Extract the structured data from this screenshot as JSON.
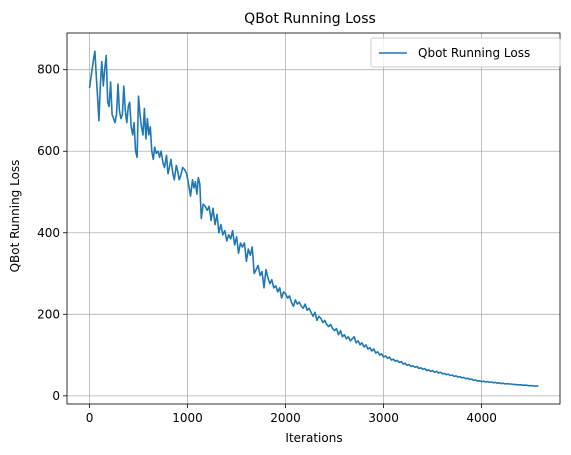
{
  "chart_data": {
    "type": "line",
    "title": "QBot Running Loss",
    "xlabel": "Iterations",
    "ylabel": "QBot Running Loss",
    "xlim": [
      -230,
      4800
    ],
    "ylim": [
      -20,
      890
    ],
    "xticks": [
      0,
      1000,
      2000,
      3000,
      4000
    ],
    "yticks": [
      0,
      200,
      400,
      600,
      800
    ],
    "xtick_labels": [
      "0",
      "1000",
      "2000",
      "3000",
      "4000"
    ],
    "ytick_labels": [
      "0",
      "200",
      "400",
      "600",
      "800"
    ],
    "grid": true,
    "legend_position": "top-right",
    "series": [
      {
        "name": "Qbot Running Loss",
        "color": "#1f77b4",
        "points": [
          [
            0,
            755
          ],
          [
            20,
            790
          ],
          [
            40,
            825
          ],
          [
            55,
            845
          ],
          [
            70,
            780
          ],
          [
            85,
            720
          ],
          [
            95,
            675
          ],
          [
            110,
            760
          ],
          [
            125,
            820
          ],
          [
            140,
            760
          ],
          [
            155,
            800
          ],
          [
            170,
            835
          ],
          [
            185,
            720
          ],
          [
            200,
            710
          ],
          [
            215,
            770
          ],
          [
            230,
            690
          ],
          [
            245,
            680
          ],
          [
            260,
            670
          ],
          [
            275,
            690
          ],
          [
            290,
            765
          ],
          [
            305,
            700
          ],
          [
            320,
            680
          ],
          [
            335,
            690
          ],
          [
            350,
            760
          ],
          [
            365,
            700
          ],
          [
            380,
            670
          ],
          [
            395,
            710
          ],
          [
            410,
            720
          ],
          [
            425,
            660
          ],
          [
            440,
            640
          ],
          [
            455,
            670
          ],
          [
            470,
            600
          ],
          [
            485,
            585
          ],
          [
            500,
            735
          ],
          [
            515,
            690
          ],
          [
            530,
            660
          ],
          [
            545,
            640
          ],
          [
            560,
            705
          ],
          [
            575,
            630
          ],
          [
            590,
            680
          ],
          [
            605,
            640
          ],
          [
            620,
            660
          ],
          [
            635,
            600
          ],
          [
            650,
            580
          ],
          [
            665,
            610
          ],
          [
            680,
            595
          ],
          [
            700,
            600
          ],
          [
            715,
            585
          ],
          [
            730,
            600
          ],
          [
            750,
            570
          ],
          [
            765,
            560
          ],
          [
            785,
            590
          ],
          [
            800,
            545
          ],
          [
            815,
            560
          ],
          [
            830,
            580
          ],
          [
            850,
            545
          ],
          [
            865,
            530
          ],
          [
            885,
            565
          ],
          [
            900,
            550
          ],
          [
            915,
            530
          ],
          [
            930,
            540
          ],
          [
            950,
            560
          ],
          [
            970,
            555
          ],
          [
            990,
            545
          ],
          [
            1010,
            520
          ],
          [
            1030,
            490
          ],
          [
            1050,
            530
          ],
          [
            1065,
            510
          ],
          [
            1080,
            525
          ],
          [
            1095,
            495
          ],
          [
            1110,
            535
          ],
          [
            1125,
            520
          ],
          [
            1140,
            435
          ],
          [
            1160,
            470
          ],
          [
            1180,
            465
          ],
          [
            1200,
            455
          ],
          [
            1220,
            465
          ],
          [
            1240,
            430
          ],
          [
            1260,
            460
          ],
          [
            1280,
            420
          ],
          [
            1300,
            445
          ],
          [
            1320,
            400
          ],
          [
            1340,
            420
          ],
          [
            1360,
            395
          ],
          [
            1380,
            405
          ],
          [
            1400,
            380
          ],
          [
            1420,
            395
          ],
          [
            1440,
            385
          ],
          [
            1460,
            405
          ],
          [
            1480,
            370
          ],
          [
            1500,
            390
          ],
          [
            1520,
            350
          ],
          [
            1540,
            375
          ],
          [
            1560,
            365
          ],
          [
            1580,
            375
          ],
          [
            1600,
            330
          ],
          [
            1620,
            360
          ],
          [
            1640,
            345
          ],
          [
            1660,
            365
          ],
          [
            1680,
            300
          ],
          [
            1700,
            310
          ],
          [
            1720,
            320
          ],
          [
            1740,
            295
          ],
          [
            1760,
            305
          ],
          [
            1780,
            265
          ],
          [
            1800,
            310
          ],
          [
            1820,
            290
          ],
          [
            1840,
            275
          ],
          [
            1860,
            285
          ],
          [
            1880,
            265
          ],
          [
            1900,
            270
          ],
          [
            1920,
            255
          ],
          [
            1940,
            265
          ],
          [
            1960,
            240
          ],
          [
            1980,
            255
          ],
          [
            2000,
            250
          ],
          [
            2020,
            240
          ],
          [
            2040,
            245
          ],
          [
            2060,
            230
          ],
          [
            2080,
            220
          ],
          [
            2100,
            235
          ],
          [
            2120,
            225
          ],
          [
            2140,
            230
          ],
          [
            2160,
            220
          ],
          [
            2180,
            215
          ],
          [
            2200,
            225
          ],
          [
            2220,
            210
          ],
          [
            2240,
            215
          ],
          [
            2260,
            205
          ],
          [
            2280,
            195
          ],
          [
            2300,
            205
          ],
          [
            2320,
            185
          ],
          [
            2340,
            195
          ],
          [
            2360,
            190
          ],
          [
            2380,
            180
          ],
          [
            2400,
            185
          ],
          [
            2420,
            175
          ],
          [
            2440,
            170
          ],
          [
            2460,
            175
          ],
          [
            2480,
            165
          ],
          [
            2500,
            160
          ],
          [
            2520,
            165
          ],
          [
            2540,
            150
          ],
          [
            2560,
            160
          ],
          [
            2580,
            145
          ],
          [
            2600,
            150
          ],
          [
            2620,
            140
          ],
          [
            2640,
            145
          ],
          [
            2660,
            135
          ],
          [
            2680,
            140
          ],
          [
            2700,
            145
          ],
          [
            2720,
            130
          ],
          [
            2740,
            135
          ],
          [
            2760,
            125
          ],
          [
            2780,
            130
          ],
          [
            2800,
            120
          ],
          [
            2820,
            125
          ],
          [
            2840,
            115
          ],
          [
            2860,
            118
          ],
          [
            2880,
            110
          ],
          [
            2900,
            115
          ],
          [
            2920,
            105
          ],
          [
            2940,
            108
          ],
          [
            2960,
            100
          ],
          [
            2980,
            103
          ],
          [
            3000,
            95
          ],
          [
            3020,
            98
          ],
          [
            3040,
            92
          ],
          [
            3060,
            95
          ],
          [
            3080,
            88
          ],
          [
            3100,
            90
          ],
          [
            3120,
            85
          ],
          [
            3140,
            87
          ],
          [
            3160,
            82
          ],
          [
            3180,
            84
          ],
          [
            3200,
            78
          ],
          [
            3220,
            80
          ],
          [
            3240,
            75
          ],
          [
            3260,
            77
          ],
          [
            3280,
            72
          ],
          [
            3300,
            74
          ],
          [
            3320,
            70
          ],
          [
            3340,
            72
          ],
          [
            3360,
            67
          ],
          [
            3380,
            69
          ],
          [
            3400,
            65
          ],
          [
            3420,
            67
          ],
          [
            3440,
            62
          ],
          [
            3460,
            64
          ],
          [
            3480,
            60
          ],
          [
            3500,
            62
          ],
          [
            3520,
            58
          ],
          [
            3540,
            60
          ],
          [
            3560,
            56
          ],
          [
            3580,
            58
          ],
          [
            3600,
            54
          ],
          [
            3620,
            55
          ],
          [
            3640,
            52
          ],
          [
            3660,
            53
          ],
          [
            3680,
            50
          ],
          [
            3700,
            51
          ],
          [
            3720,
            48
          ],
          [
            3740,
            49
          ],
          [
            3760,
            46
          ],
          [
            3780,
            47
          ],
          [
            3800,
            44
          ],
          [
            3820,
            45
          ],
          [
            3840,
            42
          ],
          [
            3860,
            43
          ],
          [
            3880,
            40
          ],
          [
            3900,
            41
          ],
          [
            3920,
            38
          ],
          [
            3940,
            39
          ],
          [
            3960,
            36
          ],
          [
            3980,
            37
          ],
          [
            4000,
            35
          ],
          [
            4020,
            36
          ],
          [
            4040,
            34
          ],
          [
            4060,
            35
          ],
          [
            4080,
            33
          ],
          [
            4100,
            34
          ],
          [
            4120,
            32
          ],
          [
            4140,
            33
          ],
          [
            4160,
            31
          ],
          [
            4180,
            32
          ],
          [
            4200,
            30
          ],
          [
            4220,
            31
          ],
          [
            4240,
            29
          ],
          [
            4260,
            30
          ],
          [
            4280,
            29
          ],
          [
            4300,
            29
          ],
          [
            4320,
            28
          ],
          [
            4340,
            28
          ],
          [
            4360,
            27
          ],
          [
            4380,
            27
          ],
          [
            4400,
            27
          ],
          [
            4420,
            26
          ],
          [
            4440,
            26
          ],
          [
            4460,
            26
          ],
          [
            4480,
            25
          ],
          [
            4500,
            25
          ],
          [
            4520,
            25
          ],
          [
            4540,
            24
          ],
          [
            4560,
            24
          ],
          [
            4580,
            24
          ]
        ]
      }
    ]
  }
}
